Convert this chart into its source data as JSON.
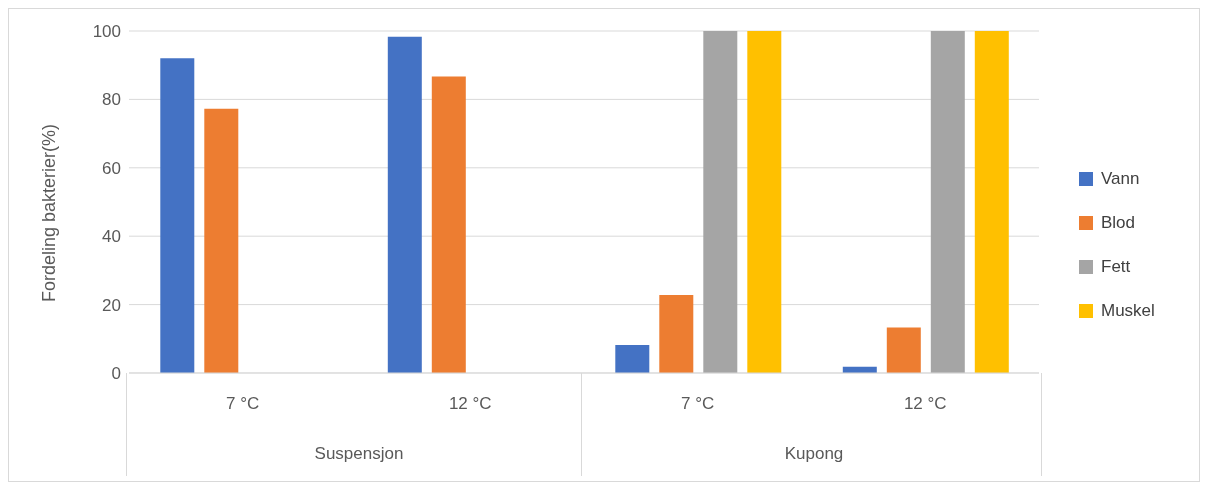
{
  "chart_data": {
    "type": "bar",
    "ylabel": "Fordeling bakterier(%)",
    "categories": [
      "7 °C",
      "12 °C",
      "7 °C",
      "12 °C"
    ],
    "annotations": [
      "Suspensjon",
      "Kupong"
    ],
    "series": [
      {
        "name": "Vann",
        "color": "#4472c4",
        "values": [
          92,
          98.3,
          8.2,
          1.8
        ]
      },
      {
        "name": "Blod",
        "color": "#ed7d31",
        "values": [
          77.3,
          86.7,
          22.8,
          13.3
        ]
      },
      {
        "name": "Fett",
        "color": "#a5a5a5",
        "values": [
          0,
          0,
          100,
          100
        ]
      },
      {
        "name": "Muskel",
        "color": "#ffc000",
        "values": [
          0,
          0,
          100,
          100
        ]
      }
    ],
    "ylim": [
      0,
      100
    ],
    "yticks": [
      0,
      20,
      40,
      60,
      80,
      100
    ],
    "grid": "y",
    "legend": "right"
  }
}
